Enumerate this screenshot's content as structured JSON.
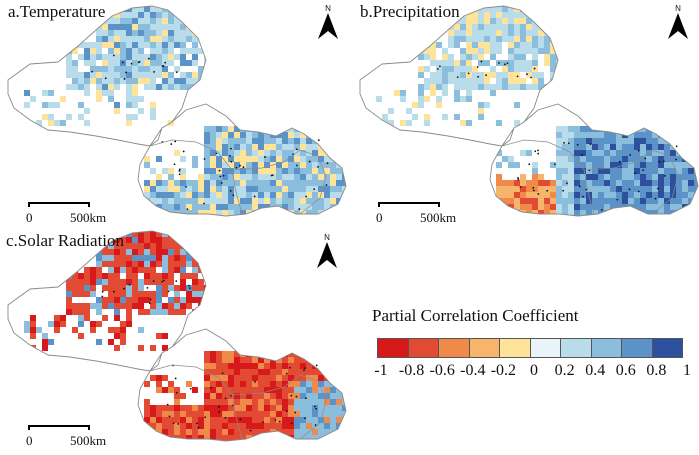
{
  "panels": [
    {
      "label": "a.Temperature",
      "north": "N",
      "scale_zero": "0",
      "scale_end": "500km",
      "pattern": "temperature"
    },
    {
      "label": "b.Precipitation",
      "north": "N",
      "scale_zero": "0",
      "scale_end": "500km",
      "pattern": "precipitation"
    },
    {
      "label": "c.Solar Radiation",
      "north": "N",
      "scale_zero": "0",
      "scale_end": "500km",
      "pattern": "solar"
    }
  ],
  "legend": {
    "title": "Partial Correlation Coefficient",
    "colors": [
      "#d7191c",
      "#e34a33",
      "#f08a4b",
      "#f6b56b",
      "#fde49a",
      "#e8f4f8",
      "#b9dcea",
      "#8bbedc",
      "#5b93c8",
      "#2c4f9e"
    ],
    "ticks": [
      "-1",
      "-0.8",
      "-0.6",
      "-0.4",
      "-0.2",
      "0",
      "0.2",
      "0.4",
      "0.6",
      "0.8",
      "1"
    ]
  }
}
